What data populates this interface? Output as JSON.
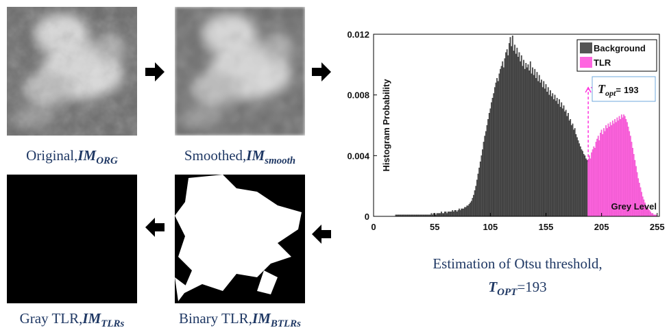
{
  "panels": [
    {
      "caption": "Original,",
      "symbol": "IM",
      "subscript": "ORG"
    },
    {
      "caption": "Smoothed,",
      "symbol": "IM",
      "subscript": "smooth"
    },
    {
      "caption": "Gray TLR,",
      "symbol": "IM",
      "subscript": "TLRs"
    },
    {
      "caption": "Binary TLR,",
      "symbol": "IM",
      "subscript": "BTLRs"
    }
  ],
  "chart_caption": {
    "line1": "Estimation of Otsu threshold,",
    "symbol": "T",
    "subscript": "OPT",
    "equals": "=193"
  },
  "chart_data": {
    "type": "histogram",
    "ylabel": "Histogram Probability",
    "xlabel": "Grey Level",
    "xlim": [
      0,
      257
    ],
    "ylim": [
      0,
      0.012
    ],
    "xticks": [
      0,
      55,
      105,
      155,
      205,
      255
    ],
    "yticks": [
      0,
      0.004,
      0.008,
      0.012
    ],
    "legend": "upper right",
    "annotation": {
      "symbol": "T",
      "subscript": "opt",
      "equals": "=",
      "value": 193,
      "color": "#ff33dd"
    },
    "series": [
      {
        "name": "Background",
        "color": "#555555",
        "x": [
          0,
          1,
          2,
          3,
          4,
          5,
          6,
          7,
          8,
          9,
          10,
          11,
          12,
          13,
          14,
          15,
          16,
          17,
          18,
          19,
          20,
          21,
          22,
          23,
          24,
          25,
          26,
          27,
          28,
          29,
          30,
          31,
          32,
          33,
          34,
          35,
          36,
          37,
          38,
          39,
          40,
          41,
          42,
          43,
          44,
          45,
          46,
          47,
          48,
          49,
          50,
          51,
          52,
          53,
          54,
          55,
          56,
          57,
          58,
          59,
          60,
          61,
          62,
          63,
          64,
          65,
          66,
          67,
          68,
          69,
          70,
          71,
          72,
          73,
          74,
          75,
          76,
          77,
          78,
          79,
          80,
          81,
          82,
          83,
          84,
          85,
          86,
          87,
          88,
          89,
          90,
          91,
          92,
          93,
          94,
          95,
          96,
          97,
          98,
          99,
          100,
          101,
          102,
          103,
          104,
          105,
          106,
          107,
          108,
          109,
          110,
          111,
          112,
          113,
          114,
          115,
          116,
          117,
          118,
          119,
          120,
          121,
          122,
          123,
          124,
          125,
          126,
          127,
          128,
          129,
          130,
          131,
          132,
          133,
          134,
          135,
          136,
          137,
          138,
          139,
          140,
          141,
          142,
          143,
          144,
          145,
          146,
          147,
          148,
          149,
          150,
          151,
          152,
          153,
          154,
          155,
          156,
          157,
          158,
          159,
          160,
          161,
          162,
          163,
          164,
          165,
          166,
          167,
          168,
          169,
          170,
          171,
          172,
          173,
          174,
          175,
          176,
          177,
          178,
          179,
          180,
          181,
          182,
          183,
          184,
          185,
          186,
          187,
          188,
          189,
          190,
          191,
          192
        ],
        "values": [
          0,
          0,
          0,
          0,
          0,
          0,
          0,
          0,
          0,
          0,
          0,
          0,
          0,
          0,
          0,
          0,
          0,
          0,
          0,
          0,
          0.0001,
          0.0001,
          0.0001,
          0.0001,
          0.0001,
          0.0001,
          0.0001,
          0.0001,
          0.0001,
          0.0001,
          0.0001,
          0.0001,
          0.0001,
          0.0001,
          0.0001,
          0.0001,
          0.0001,
          0.0001,
          0.0001,
          0.0001,
          0.0001,
          0.0001,
          0.0001,
          0.0001,
          0.0001,
          0.0001,
          0.0001,
          0.0001,
          0.0001,
          0.0001,
          0.0001,
          0.0001,
          0.0002,
          0.0001,
          0.0002,
          0.0002,
          0.0001,
          0.0002,
          0.0002,
          0.0002,
          0.0002,
          0.0003,
          0.0002,
          0.0002,
          0.0003,
          0.0003,
          0.0002,
          0.0003,
          0.0003,
          0.0003,
          0.0003,
          0.0004,
          0.0003,
          0.0004,
          0.0004,
          0.0003,
          0.0004,
          0.0005,
          0.0004,
          0.0005,
          0.0005,
          0.0005,
          0.0006,
          0.0006,
          0.0007,
          0.0007,
          0.0008,
          0.0009,
          0.001,
          0.0012,
          0.0014,
          0.0017,
          0.002,
          0.0024,
          0.0028,
          0.0032,
          0.0036,
          0.004,
          0.0044,
          0.0049,
          0.0053,
          0.0056,
          0.006,
          0.0064,
          0.0068,
          0.0071,
          0.0075,
          0.0078,
          0.0081,
          0.0085,
          0.0088,
          0.0091,
          0.0089,
          0.0094,
          0.0097,
          0.0099,
          0.0102,
          0.0098,
          0.0104,
          0.0108,
          0.011,
          0.0106,
          0.0114,
          0.0118,
          0.0112,
          0.0119,
          0.0109,
          0.0113,
          0.0107,
          0.0111,
          0.0105,
          0.0108,
          0.0102,
          0.0106,
          0.0099,
          0.0103,
          0.0097,
          0.0101,
          0.0098,
          0.01,
          0.0096,
          0.0102,
          0.0094,
          0.0098,
          0.0093,
          0.0097,
          0.0091,
          0.0095,
          0.0089,
          0.0093,
          0.0088,
          0.009,
          0.0085,
          0.0089,
          0.0084,
          0.0087,
          0.0082,
          0.0085,
          0.008,
          0.0083,
          0.0079,
          0.0081,
          0.0077,
          0.008,
          0.0076,
          0.0078,
          0.0074,
          0.0077,
          0.0072,
          0.0075,
          0.0071,
          0.0073,
          0.0069,
          0.007,
          0.0066,
          0.0068,
          0.0063,
          0.0064,
          0.006,
          0.0061,
          0.0057,
          0.0058,
          0.0054,
          0.0052,
          0.005,
          0.0048,
          0.0046,
          0.0044,
          0.0043,
          0.0041,
          0.004,
          0.0038,
          0.0037
        ]
      },
      {
        "name": "TLR",
        "color": "#ff66e0",
        "x": [
          193,
          194,
          195,
          196,
          197,
          198,
          199,
          200,
          201,
          202,
          203,
          204,
          205,
          206,
          207,
          208,
          209,
          210,
          211,
          212,
          213,
          214,
          215,
          216,
          217,
          218,
          219,
          220,
          221,
          222,
          223,
          224,
          225,
          226,
          227,
          228,
          229,
          230,
          231,
          232,
          233,
          234,
          235,
          236,
          237,
          238,
          239,
          240,
          241,
          242,
          243,
          244,
          245,
          246,
          247,
          248,
          249,
          250,
          251,
          252,
          253,
          254,
          255
        ],
        "values": [
          0.0036,
          0.004,
          0.0038,
          0.0042,
          0.0044,
          0.0046,
          0.0045,
          0.0049,
          0.0051,
          0.0053,
          0.005,
          0.0055,
          0.0057,
          0.0054,
          0.0058,
          0.0056,
          0.006,
          0.0058,
          0.0061,
          0.0059,
          0.0062,
          0.006,
          0.0063,
          0.0061,
          0.0064,
          0.0062,
          0.0065,
          0.0063,
          0.0066,
          0.0064,
          0.0067,
          0.0065,
          0.0067,
          0.0066,
          0.0064,
          0.0062,
          0.0059,
          0.0056,
          0.0053,
          0.0049,
          0.0045,
          0.0041,
          0.0037,
          0.0033,
          0.0029,
          0.0025,
          0.0022,
          0.0019,
          0.0016,
          0.0013,
          0.0011,
          0.0009,
          0.0007,
          0.0006,
          0.0005,
          0.0004,
          0.0003,
          0.0002,
          0.0002,
          0.0001,
          0.0001,
          0.0001,
          0
        ]
      }
    ]
  }
}
